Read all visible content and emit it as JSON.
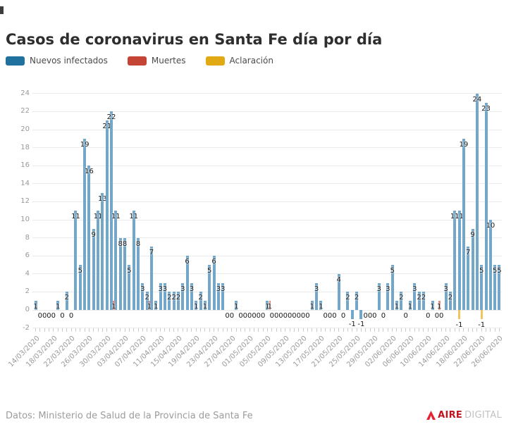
{
  "page": {
    "footer_source": "Datos: Ministerio de Salud de la Provincia de Santa Fe",
    "logo": {
      "brand_bold": "AIRE",
      "brand_light": "DIGITAL"
    }
  },
  "chart_data": {
    "type": "bar",
    "title": "Casos de coronavirus en Santa Fe día por día",
    "legend": [
      {
        "label": "Nuevos infectados",
        "color": "#21719f",
        "bar_color": "#72a7ca"
      },
      {
        "label": "Muertes",
        "color": "#c44536",
        "bar_color": "#df8a7e"
      },
      {
        "label": "Aclaración",
        "color": "#e1aa15",
        "bar_color": "#f1c45f"
      }
    ],
    "start_date": "14/03/2020",
    "end_date": "26/06/2020",
    "x_tick_labels": [
      "14/03/2020",
      "18/03/2020",
      "22/03/2020",
      "26/03/2020",
      "30/03/2020",
      "03/04/2020",
      "07/04/2020",
      "11/04/2020",
      "15/04/2020",
      "19/04/2020",
      "23/04/2020",
      "27/04/2020",
      "01/05/2020",
      "05/05/2020",
      "09/05/2020",
      "13/05/2020",
      "17/05/2020",
      "21/05/2020",
      "25/05/2020",
      "29/05/2020",
      "02/06/2020",
      "06/06/2020",
      "10/06/2020",
      "14/06/2020",
      "18/06/2020",
      "22/06/2020",
      "26/06/2020"
    ],
    "y_ticks": [
      -2,
      0,
      2,
      4,
      6,
      8,
      10,
      12,
      14,
      16,
      18,
      20,
      22,
      24
    ],
    "ylim": [
      -2,
      24
    ],
    "grid": true,
    "legend_position": "top-left",
    "series": [
      {
        "name": "Nuevos infectados",
        "values": [
          1,
          0,
          0,
          0,
          0,
          1,
          0,
          2,
          0,
          11,
          5,
          19,
          16,
          9,
          11,
          13,
          21,
          22,
          11,
          8,
          8,
          5,
          11,
          8,
          3,
          2,
          7,
          1,
          3,
          3,
          2,
          2,
          2,
          3,
          6,
          3,
          1,
          2,
          1,
          5,
          6,
          3,
          3,
          0,
          0,
          1,
          0,
          0,
          0,
          0,
          0,
          0,
          1,
          0,
          0,
          0,
          0,
          0,
          0,
          0,
          0,
          0,
          1,
          3,
          1,
          0,
          0,
          0,
          4,
          0,
          2,
          -1,
          2,
          -1,
          0,
          0,
          0,
          3,
          0,
          3,
          5,
          1,
          2,
          0,
          1,
          3,
          2,
          2,
          0,
          1,
          0,
          0,
          3,
          2,
          11,
          11,
          19,
          7,
          9,
          24,
          5,
          23,
          10,
          5,
          5
        ]
      },
      {
        "name": "Muertes",
        "points": [
          {
            "index": 18,
            "date": "01/04/2020",
            "value": 1
          },
          {
            "index": 26,
            "date": "09/04/2020",
            "value": 1
          },
          {
            "index": 53,
            "date": "06/05/2020",
            "value": 1
          },
          {
            "index": 91,
            "date": "13/06/2020",
            "value": 1
          }
        ]
      },
      {
        "name": "Aclaración",
        "points": [
          {
            "index": 95,
            "date": "17/06/2020",
            "value": -1
          },
          {
            "index": 100,
            "date": "22/06/2020",
            "value": -1
          }
        ]
      }
    ]
  }
}
